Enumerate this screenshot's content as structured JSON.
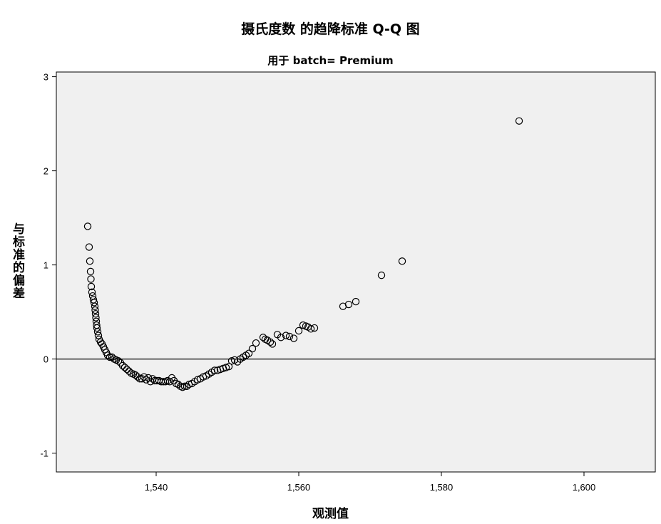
{
  "chart_data": {
    "type": "scatter",
    "title": "摄氏度数 的趋降标准 Q-Q 图",
    "subtitle": "用于 batch= Premium",
    "xlabel": "观测值",
    "ylabel": "与标准的偏差",
    "xlim": [
      1526,
      1610
    ],
    "ylim": [
      -1.2,
      3.05
    ],
    "xticks": [
      1540,
      1560,
      1580,
      1600
    ],
    "xtick_labels": [
      "1,540",
      "1,560",
      "1,580",
      "1,600"
    ],
    "yticks": [
      -1,
      0,
      1,
      2,
      3
    ],
    "ytick_labels": [
      "-1",
      "0",
      "1",
      "2",
      "3"
    ],
    "reference_line_y": 0,
    "grid": false,
    "plot_background": "#f0f0f0",
    "marker": "open-circle",
    "points": [
      [
        1530.4,
        1.41
      ],
      [
        1530.6,
        1.19
      ],
      [
        1530.7,
        1.04
      ],
      [
        1530.8,
        0.93
      ],
      [
        1530.85,
        0.85
      ],
      [
        1530.9,
        0.77
      ],
      [
        1531.0,
        0.71
      ],
      [
        1531.1,
        0.67
      ],
      [
        1531.2,
        0.63
      ],
      [
        1531.3,
        0.6
      ],
      [
        1531.4,
        0.56
      ],
      [
        1531.45,
        0.52
      ],
      [
        1531.5,
        0.48
      ],
      [
        1531.55,
        0.44
      ],
      [
        1531.6,
        0.4
      ],
      [
        1531.65,
        0.36
      ],
      [
        1531.7,
        0.33
      ],
      [
        1531.8,
        0.29
      ],
      [
        1531.9,
        0.25
      ],
      [
        1532.0,
        0.21
      ],
      [
        1532.2,
        0.18
      ],
      [
        1532.4,
        0.16
      ],
      [
        1532.6,
        0.13
      ],
      [
        1532.8,
        0.1
      ],
      [
        1533.0,
        0.07
      ],
      [
        1533.2,
        0.04
      ],
      [
        1533.5,
        0.02
      ],
      [
        1533.8,
        0.02
      ],
      [
        1534.1,
        0.0
      ],
      [
        1534.4,
        -0.01
      ],
      [
        1534.7,
        -0.02
      ],
      [
        1535.0,
        -0.04
      ],
      [
        1535.3,
        -0.07
      ],
      [
        1535.6,
        -0.09
      ],
      [
        1535.9,
        -0.11
      ],
      [
        1536.2,
        -0.13
      ],
      [
        1536.5,
        -0.15
      ],
      [
        1536.8,
        -0.16
      ],
      [
        1537.1,
        -0.17
      ],
      [
        1537.4,
        -0.19
      ],
      [
        1537.7,
        -0.21
      ],
      [
        1538.0,
        -0.21
      ],
      [
        1538.3,
        -0.19
      ],
      [
        1538.6,
        -0.22
      ],
      [
        1538.9,
        -0.2
      ],
      [
        1539.2,
        -0.24
      ],
      [
        1539.5,
        -0.21
      ],
      [
        1539.8,
        -0.23
      ],
      [
        1540.1,
        -0.23
      ],
      [
        1540.4,
        -0.23
      ],
      [
        1540.7,
        -0.24
      ],
      [
        1541.0,
        -0.24
      ],
      [
        1541.3,
        -0.24
      ],
      [
        1541.6,
        -0.23
      ],
      [
        1541.9,
        -0.24
      ],
      [
        1542.2,
        -0.2
      ],
      [
        1542.5,
        -0.23
      ],
      [
        1542.8,
        -0.26
      ],
      [
        1543.1,
        -0.27
      ],
      [
        1543.4,
        -0.29
      ],
      [
        1543.7,
        -0.3
      ],
      [
        1544.0,
        -0.29
      ],
      [
        1544.3,
        -0.29
      ],
      [
        1544.6,
        -0.27
      ],
      [
        1545.0,
        -0.26
      ],
      [
        1545.4,
        -0.24
      ],
      [
        1545.8,
        -0.22
      ],
      [
        1546.2,
        -0.21
      ],
      [
        1546.6,
        -0.19
      ],
      [
        1547.0,
        -0.18
      ],
      [
        1547.4,
        -0.16
      ],
      [
        1547.8,
        -0.14
      ],
      [
        1548.2,
        -0.12
      ],
      [
        1548.6,
        -0.12
      ],
      [
        1549.0,
        -0.11
      ],
      [
        1549.4,
        -0.1
      ],
      [
        1549.8,
        -0.09
      ],
      [
        1550.2,
        -0.08
      ],
      [
        1550.6,
        -0.02
      ],
      [
        1551.0,
        -0.01
      ],
      [
        1551.4,
        -0.03
      ],
      [
        1551.8,
        0.0
      ],
      [
        1552.2,
        0.02
      ],
      [
        1552.6,
        0.04
      ],
      [
        1553.0,
        0.06
      ],
      [
        1553.5,
        0.11
      ],
      [
        1554.0,
        0.17
      ],
      [
        1555.0,
        0.23
      ],
      [
        1555.3,
        0.21
      ],
      [
        1555.6,
        0.2
      ],
      [
        1556.0,
        0.18
      ],
      [
        1556.3,
        0.16
      ],
      [
        1557.0,
        0.26
      ],
      [
        1557.5,
        0.23
      ],
      [
        1558.2,
        0.25
      ],
      [
        1558.7,
        0.24
      ],
      [
        1559.3,
        0.22
      ],
      [
        1560.0,
        0.3
      ],
      [
        1560.6,
        0.36
      ],
      [
        1561.0,
        0.35
      ],
      [
        1561.3,
        0.34
      ],
      [
        1561.7,
        0.32
      ],
      [
        1562.2,
        0.33
      ],
      [
        1566.2,
        0.56
      ],
      [
        1567.0,
        0.58
      ],
      [
        1568.0,
        0.61
      ],
      [
        1571.6,
        0.89
      ],
      [
        1574.5,
        1.04
      ],
      [
        1590.9,
        2.53
      ]
    ]
  }
}
